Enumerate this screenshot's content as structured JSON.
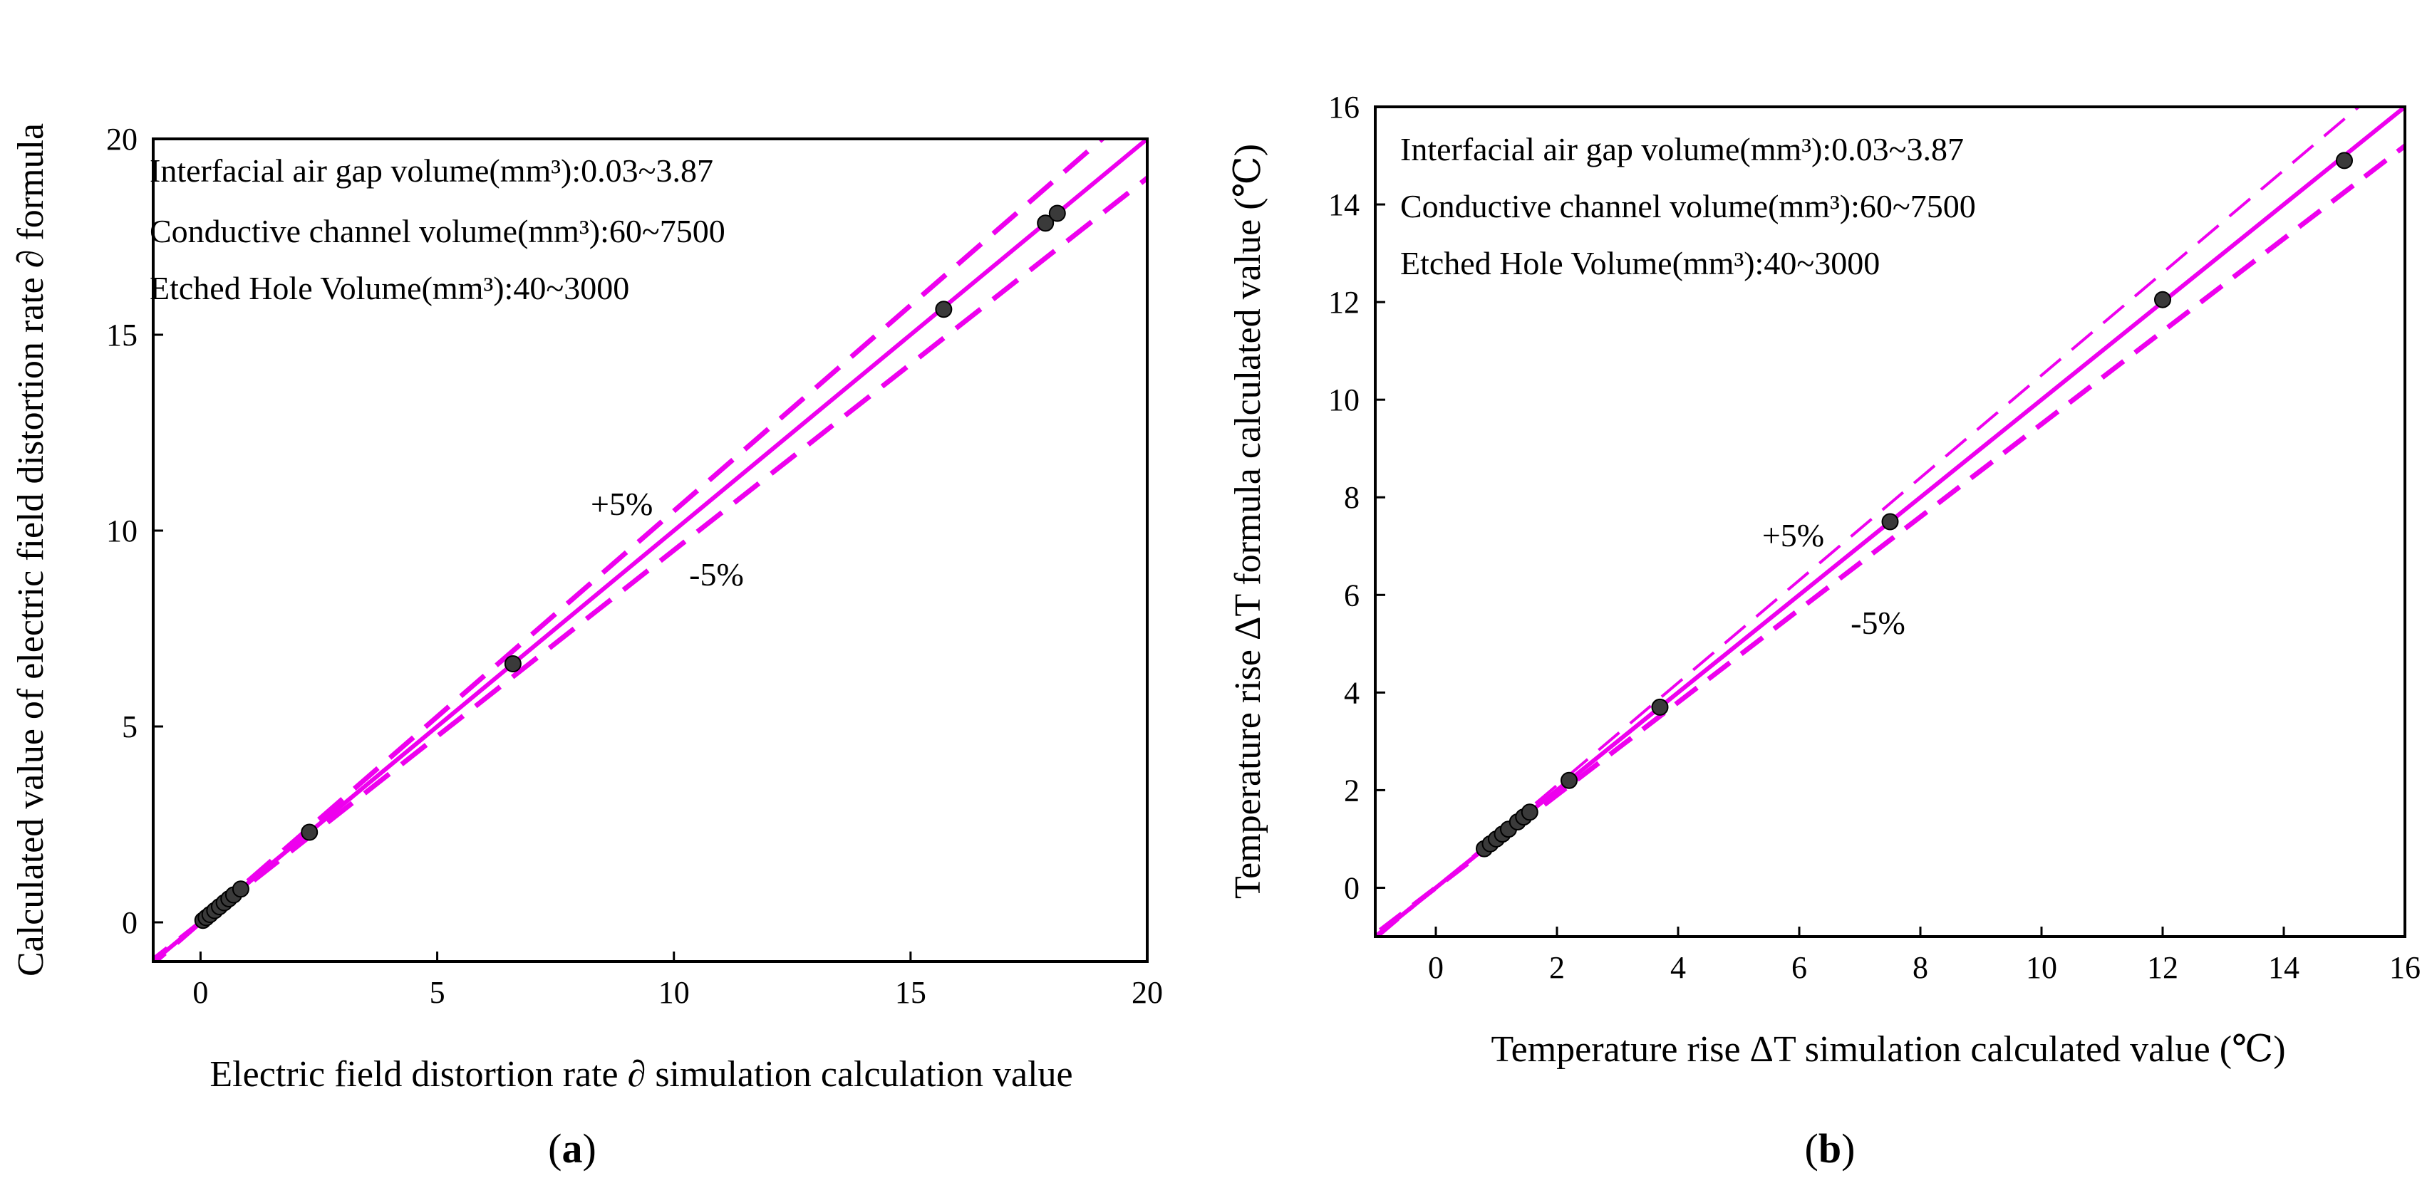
{
  "chart_data": [
    {
      "type": "scatter",
      "panel_label_open": "(",
      "panel_label_letter": "a",
      "panel_label_close": ")",
      "xlabel": "Electric field distortion rate ∂ simulation calculation value",
      "ylabel": "Calculated value of electric field distortion rate ∂ formula",
      "xlim": [
        -1,
        20
      ],
      "ylim": [
        -1,
        20
      ],
      "xticks": [
        0,
        5,
        10,
        15,
        20
      ],
      "yticks": [
        0,
        5,
        10,
        15,
        20
      ],
      "annotations": [
        "Interfacial air gap volume(mm³):0.03~3.87",
        "Conductive channel volume(mm³):60~7500",
        "Etched Hole Volume(mm³):40~3000"
      ],
      "plus_label": "+5%",
      "minus_label": "-5%",
      "plus_label_at": [
        8.9,
        10.4
      ],
      "minus_label_at": [
        10.9,
        8.6
      ],
      "reference_lines": [
        {
          "name": "y=x",
          "slope": 1.0,
          "style": "solid"
        },
        {
          "name": "+5%",
          "slope": 1.05,
          "style": "dashed"
        },
        {
          "name": "-5%",
          "slope": 0.95,
          "style": "dashed"
        }
      ],
      "line_color": "#EE00EE",
      "marker_color": "#3a3a3a",
      "x": [
        0.05,
        0.12,
        0.2,
        0.3,
        0.4,
        0.5,
        0.6,
        0.7,
        0.85,
        2.3,
        6.6,
        15.7,
        17.85,
        18.1
      ],
      "y": [
        0.05,
        0.12,
        0.2,
        0.3,
        0.4,
        0.5,
        0.6,
        0.7,
        0.85,
        2.3,
        6.6,
        15.65,
        17.85,
        18.1
      ]
    },
    {
      "type": "scatter",
      "panel_label_open": "(",
      "panel_label_letter": "b",
      "panel_label_close": ")",
      "xlabel": "Temperature rise ΔT simulation calculated value (℃)",
      "ylabel": "Temperature rise ΔT formula calculated value (℃)",
      "xlim": [
        -1,
        16
      ],
      "ylim": [
        -1,
        16
      ],
      "xticks": [
        0,
        2,
        4,
        6,
        8,
        10,
        12,
        14,
        16
      ],
      "yticks": [
        0,
        2,
        4,
        6,
        8,
        10,
        12,
        14,
        16
      ],
      "annotations": [
        "Interfacial air gap volume(mm³):0.03~3.87",
        "Conductive channel volume(mm³):60~7500",
        "Etched Hole Volume(mm³):40~3000"
      ],
      "plus_label": "+5%",
      "minus_label": "-5%",
      "plus_label_at": [
        5.9,
        7.0
      ],
      "minus_label_at": [
        7.3,
        5.2
      ],
      "reference_lines": [
        {
          "name": "y=x",
          "slope": 1.0,
          "style": "solid"
        },
        {
          "name": "+5%",
          "slope": 1.05,
          "style": "dashed"
        },
        {
          "name": "-5%",
          "slope": 0.95,
          "style": "dashed"
        }
      ],
      "line_color": "#EE00EE",
      "marker_color": "#3a3a3a",
      "x": [
        0.8,
        0.9,
        1.0,
        1.1,
        1.2,
        1.35,
        1.45,
        1.55,
        2.2,
        3.7,
        7.5,
        12.0,
        15.0
      ],
      "y": [
        0.8,
        0.9,
        1.0,
        1.1,
        1.2,
        1.35,
        1.45,
        1.55,
        2.2,
        3.7,
        7.5,
        12.05,
        14.9
      ]
    }
  ]
}
